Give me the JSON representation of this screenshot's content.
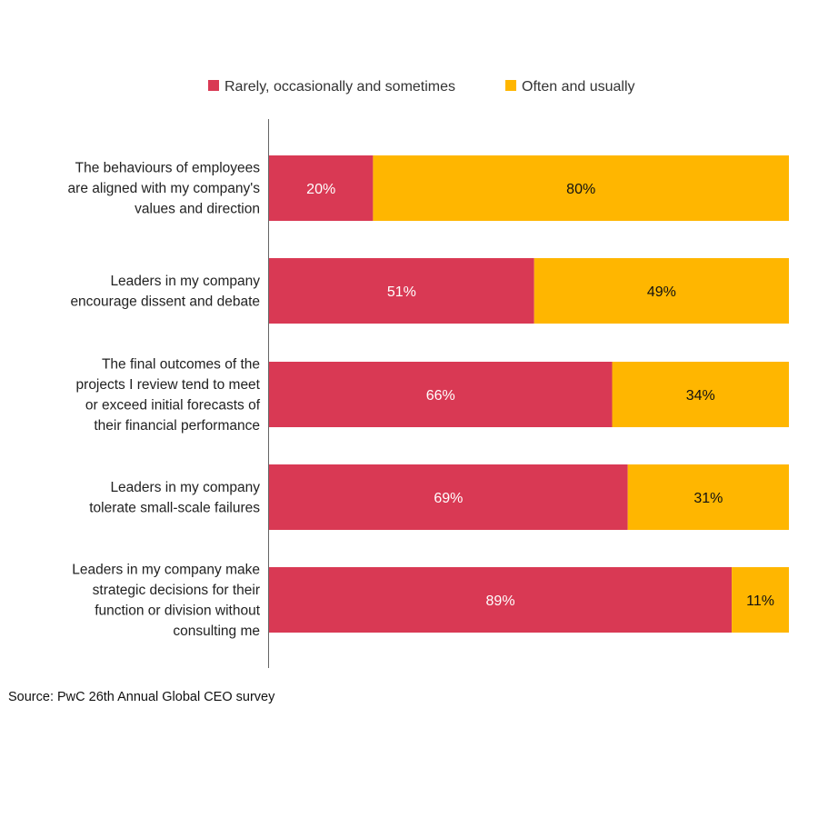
{
  "chart_data": {
    "type": "bar",
    "stacked": true,
    "orientation": "horizontal",
    "title": "",
    "xlabel": "",
    "ylabel": "",
    "xlim": [
      0,
      100
    ],
    "grid": false,
    "legend_position": "top",
    "categories": [
      [
        "The behaviours of employees",
        "are aligned with my company's",
        "values and direction"
      ],
      [
        "Leaders in my company",
        "encourage dissent and debate"
      ],
      [
        "The final outcomes of the",
        "projects I review tend to meet",
        "or exceed initial forecasts of",
        "their financial performance"
      ],
      [
        "Leaders in my company",
        "tolerate small-scale failures"
      ],
      [
        "Leaders in my company make",
        "strategic decisions for their",
        "function or division without",
        "consulting me"
      ]
    ],
    "series": [
      {
        "name": "Rarely, occasionally and sometimes",
        "color": "#D93954",
        "label_color": "#ffffff",
        "values": [
          20,
          51,
          66,
          69,
          89
        ],
        "labels": [
          "20%",
          "51%",
          "66%",
          "69%",
          "89%"
        ]
      },
      {
        "name": "Often and usually",
        "color": "#FFB600",
        "label_color": "#111111",
        "values": [
          80,
          49,
          34,
          31,
          11
        ],
        "labels": [
          "80%",
          "49%",
          "34%",
          "31%",
          "11%"
        ]
      }
    ]
  },
  "source": "Source: PwC 26th Annual Global CEO survey"
}
